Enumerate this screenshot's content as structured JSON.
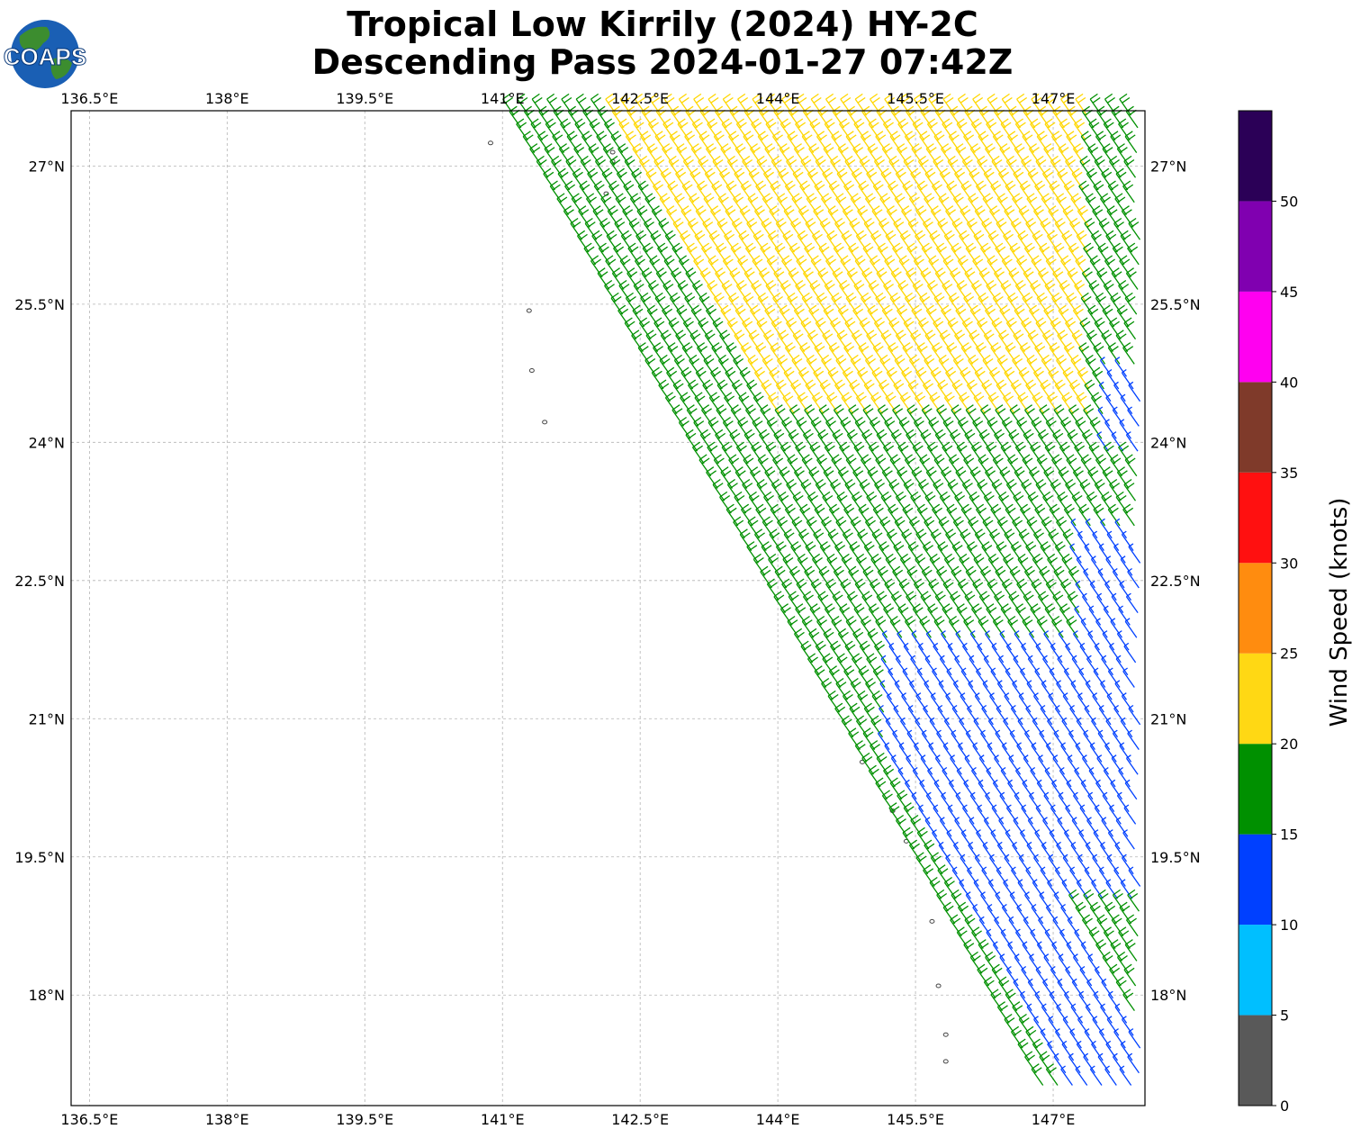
{
  "title": {
    "line1": "Tropical Low Kirrily (2024) HY-2C",
    "line2": "Descending Pass 2024-01-27 07:42Z"
  },
  "logo": {
    "text": "COAPS",
    "icon": "globe-logo-icon"
  },
  "map": {
    "lon_range": [
      136.3,
      148.0
    ],
    "lat_range": [
      16.8,
      27.6
    ],
    "lon_ticks": [
      136.5,
      138,
      139.5,
      141,
      142.5,
      144,
      145.5,
      147
    ],
    "lon_tick_labels": [
      "136.5°E",
      "138°E",
      "139.5°E",
      "141°E",
      "142.5°E",
      "144°E",
      "145.5°E",
      "147°E"
    ],
    "lat_ticks": [
      18,
      19.5,
      21,
      22.5,
      24,
      25.5,
      27
    ],
    "lat_tick_labels": [
      "18°N",
      "19.5°N",
      "21°N",
      "22.5°N",
      "24°N",
      "25.5°N",
      "27°N"
    ],
    "grid": true,
    "swath": {
      "direction": "descending",
      "corners_lonlat": [
        [
          141.1,
          27.6
        ],
        [
          148.0,
          27.6
        ],
        [
          148.0,
          17.0
        ],
        [
          146.9,
          17.0
        ]
      ]
    },
    "wind_field": {
      "description_colors_by_region": {
        "north_center": "#ffd700",
        "west_edge_and_middle": "#009000",
        "south_east": "#0040ff"
      }
    },
    "islands_lonlat": [
      [
        140.87,
        27.25
      ],
      [
        142.2,
        27.15
      ],
      [
        142.2,
        27.05
      ],
      [
        142.13,
        26.7
      ],
      [
        141.29,
        25.43
      ],
      [
        141.32,
        24.78
      ],
      [
        141.46,
        24.22
      ],
      [
        144.92,
        20.53
      ],
      [
        145.25,
        20.0
      ],
      [
        145.4,
        19.67
      ],
      [
        145.68,
        18.8
      ],
      [
        145.75,
        18.1
      ],
      [
        145.83,
        17.57
      ],
      [
        145.83,
        17.28
      ]
    ]
  },
  "colorbar": {
    "label": "Wind Speed (knots)",
    "ticks": [
      0,
      5,
      10,
      15,
      20,
      25,
      30,
      35,
      40,
      45,
      50
    ],
    "range": [
      0,
      55
    ],
    "bins": [
      {
        "from": 0,
        "to": 5,
        "color": "#595959"
      },
      {
        "from": 5,
        "to": 10,
        "color": "#00bfff"
      },
      {
        "from": 10,
        "to": 15,
        "color": "#0040ff"
      },
      {
        "from": 15,
        "to": 20,
        "color": "#009000"
      },
      {
        "from": 20,
        "to": 25,
        "color": "#ffd814"
      },
      {
        "from": 25,
        "to": 30,
        "color": "#ff8c0f"
      },
      {
        "from": 30,
        "to": 35,
        "color": "#ff1010"
      },
      {
        "from": 35,
        "to": 40,
        "color": "#7f3a2a"
      },
      {
        "from": 40,
        "to": 45,
        "color": "#ff00f0"
      },
      {
        "from": 45,
        "to": 50,
        "color": "#8000b0"
      },
      {
        "from": 50,
        "to": 55,
        "color": "#2b0057"
      }
    ]
  }
}
